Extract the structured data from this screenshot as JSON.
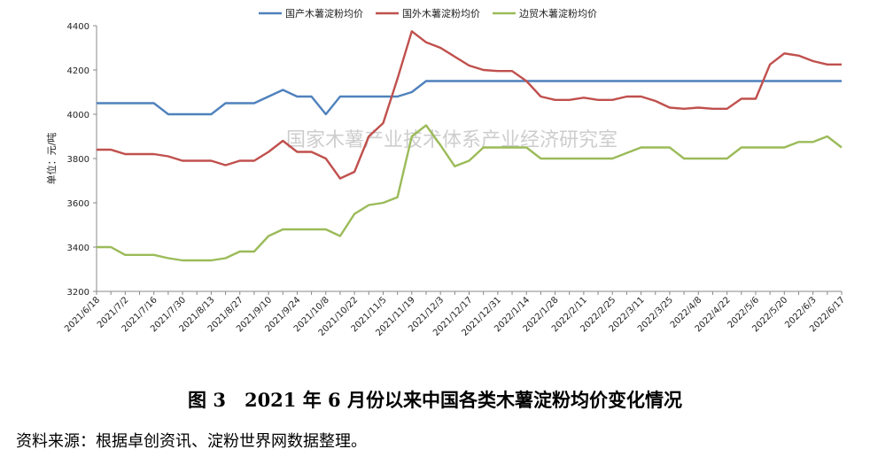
{
  "chart_data": {
    "type": "line",
    "title": "",
    "ylabel": "单位：元/吨",
    "xlabel": "",
    "ylim": [
      3200,
      4400
    ],
    "yticks": [
      3200,
      3400,
      3600,
      3800,
      4000,
      4200,
      4400
    ],
    "legend_position": "top",
    "grid": "none",
    "watermark": "国家木薯产业技术体系产业经济研究室",
    "x_tick_labels": [
      "2021/6/18",
      "2021/7/2",
      "2021/7/16",
      "2021/7/30",
      "2021/8/13",
      "2021/8/27",
      "2021/9/10",
      "2021/9/24",
      "2021/10/8",
      "2021/10/22",
      "2021/11/5",
      "2021/11/19",
      "2021/12/3",
      "2021/12/17",
      "2021/12/31",
      "2022/1/14",
      "2022/1/28",
      "2022/2/11",
      "2022/2/25",
      "2022/3/11",
      "2022/3/25",
      "2022/4/8",
      "2022/4/22",
      "2022/5/6",
      "2022/5/20",
      "2022/6/3",
      "2022/6/17"
    ],
    "x": [
      "2021/6/18",
      "2021/6/25",
      "2021/7/2",
      "2021/7/9",
      "2021/7/16",
      "2021/7/23",
      "2021/7/30",
      "2021/8/6",
      "2021/8/13",
      "2021/8/20",
      "2021/8/27",
      "2021/9/3",
      "2021/9/10",
      "2021/9/17",
      "2021/9/24",
      "2021/10/1",
      "2021/10/8",
      "2021/10/15",
      "2021/10/22",
      "2021/10/29",
      "2021/11/5",
      "2021/11/12",
      "2021/11/19",
      "2021/11/26",
      "2021/12/3",
      "2021/12/10",
      "2021/12/17",
      "2021/12/24",
      "2021/12/31",
      "2022/1/7",
      "2022/1/14",
      "2022/1/21",
      "2022/1/28",
      "2022/2/4",
      "2022/2/11",
      "2022/2/18",
      "2022/2/25",
      "2022/3/4",
      "2022/3/11",
      "2022/3/18",
      "2022/3/25",
      "2022/4/1",
      "2022/4/8",
      "2022/4/15",
      "2022/4/22",
      "2022/4/29",
      "2022/5/6",
      "2022/5/13",
      "2022/5/20",
      "2022/5/27",
      "2022/6/3",
      "2022/6/10",
      "2022/6/17"
    ],
    "series": [
      {
        "name": "国产木薯淀粉均价",
        "color": "#4f81bd",
        "values": [
          4050,
          4050,
          4050,
          4050,
          4050,
          4000,
          4000,
          4000,
          4000,
          4050,
          4050,
          4050,
          4080,
          4110,
          4080,
          4080,
          4000,
          4080,
          4080,
          4080,
          4080,
          4080,
          4100,
          4150,
          4150,
          4150,
          4150,
          4150,
          4150,
          4150,
          4150,
          4150,
          4150,
          4150,
          4150,
          4150,
          4150,
          4150,
          4150,
          4150,
          4150,
          4150,
          4150,
          4150,
          4150,
          4150,
          4150,
          4150,
          4150,
          4150,
          4150,
          4150,
          4150
        ]
      },
      {
        "name": "国外木薯淀粉均价",
        "color": "#c0504d",
        "values": [
          3840,
          3840,
          3820,
          3820,
          3820,
          3810,
          3790,
          3790,
          3790,
          3770,
          3790,
          3790,
          3830,
          3880,
          3830,
          3830,
          3800,
          3710,
          3740,
          3900,
          3960,
          4160,
          4375,
          4325,
          4300,
          4260,
          4220,
          4200,
          4195,
          4195,
          4150,
          4080,
          4065,
          4065,
          4075,
          4065,
          4065,
          4080,
          4080,
          4060,
          4030,
          4025,
          4030,
          4025,
          4025,
          4070,
          4070,
          4225,
          4275,
          4265,
          4240,
          4225,
          4225
        ]
      },
      {
        "name": "边贸木薯淀粉均价",
        "color": "#9bbb59",
        "values": [
          3400,
          3400,
          3365,
          3365,
          3365,
          3350,
          3340,
          3340,
          3340,
          3350,
          3380,
          3380,
          3450,
          3480,
          3480,
          3480,
          3480,
          3450,
          3550,
          3590,
          3600,
          3625,
          3900,
          3950,
          3860,
          3765,
          3790,
          3850,
          3850,
          3850,
          3850,
          3800,
          3800,
          3800,
          3800,
          3800,
          3800,
          3825,
          3850,
          3850,
          3850,
          3800,
          3800,
          3800,
          3800,
          3850,
          3850,
          3850,
          3850,
          3875,
          3875,
          3900,
          3850
        ]
      }
    ]
  },
  "caption": "图 3　2021 年 6 月份以来中国各类木薯淀粉均价变化情况",
  "source": "资料来源：根据卓创资讯、淀粉世界网数据整理。"
}
